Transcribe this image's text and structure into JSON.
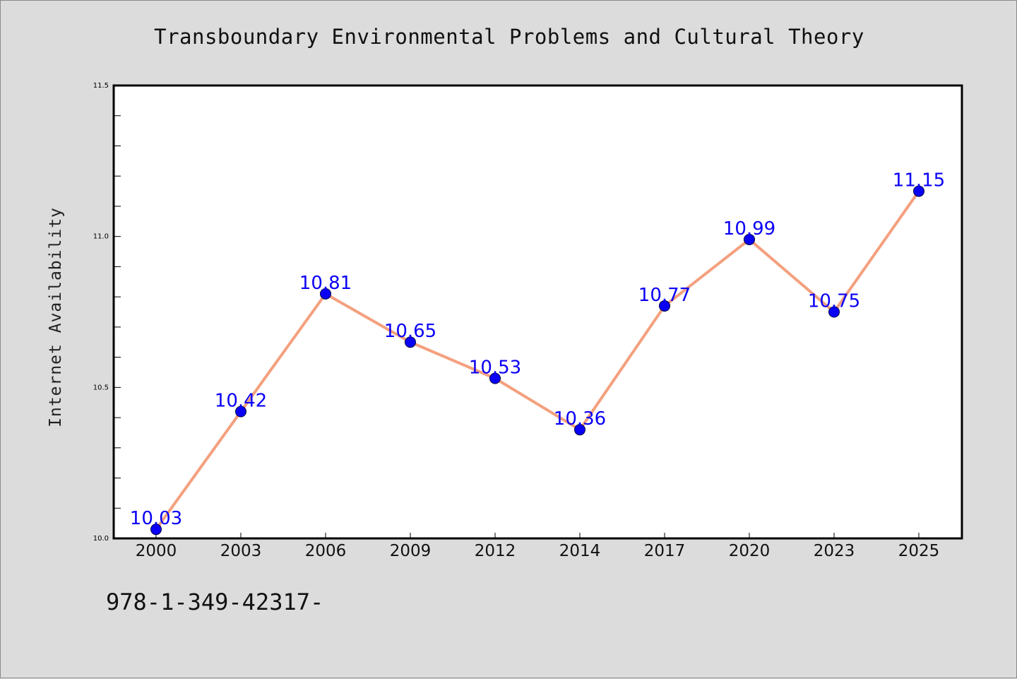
{
  "chart_data": {
    "type": "line",
    "title": "Transboundary Environmental Problems and Cultural Theory",
    "xlabel": "",
    "ylabel": "Internet Availability",
    "categories": [
      "2000",
      "2003",
      "2006",
      "2009",
      "2012",
      "2014",
      "2017",
      "2020",
      "2023",
      "2025"
    ],
    "series": [
      {
        "values": [
          10.03,
          10.42,
          10.81,
          10.65,
          10.53,
          10.36,
          10.77,
          10.99,
          10.75,
          11.15
        ],
        "labels": [
          "10.03",
          "10.42",
          "10.81",
          "10.65",
          "10.53",
          "10.36",
          "10.77",
          "10.99",
          "10.75",
          "11.15"
        ],
        "line_color": "#f4a07e",
        "marker_color": "#0a00f5",
        "label_color": "#0a00f5"
      }
    ],
    "ylim": [
      10.0,
      11.5
    ],
    "y_ticks": [
      "10.0",
      "10.5",
      "11.0",
      "11.5"
    ],
    "grid": false,
    "legend": "none"
  },
  "footer": {
    "text": "978-1-349-42317-"
  }
}
